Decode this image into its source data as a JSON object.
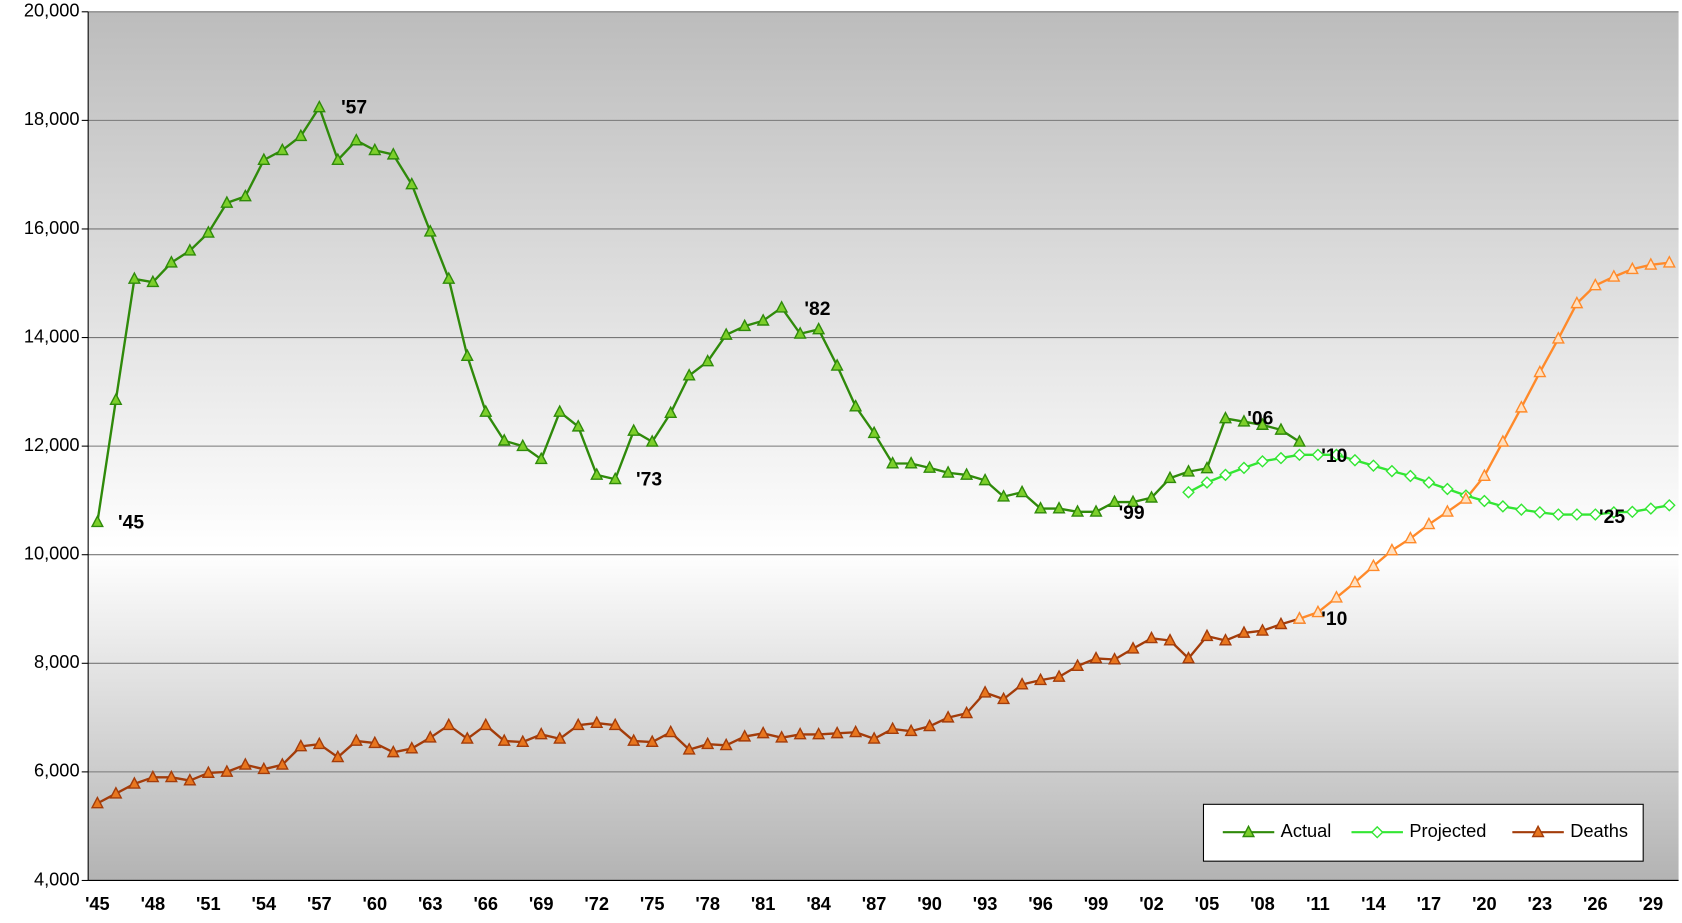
{
  "chart_data": {
    "type": "line",
    "categories": [
      "'45",
      null,
      null,
      "'48",
      null,
      null,
      "'51",
      null,
      null,
      "'54",
      null,
      null,
      "'57",
      null,
      null,
      "'60",
      null,
      null,
      "'63",
      null,
      null,
      "'66",
      null,
      null,
      "'69",
      null,
      null,
      "'72",
      null,
      null,
      "'75",
      null,
      null,
      "'78",
      null,
      null,
      "'81",
      null,
      null,
      "'84",
      null,
      null,
      "'87",
      null,
      null,
      "'90",
      null,
      null,
      "'93",
      null,
      null,
      "'96",
      null,
      null,
      "'99",
      null,
      null,
      "'02",
      null,
      null,
      "'05",
      null,
      null,
      "'08",
      null,
      null,
      "'11",
      null,
      null,
      "'14",
      null,
      null,
      "'17",
      null,
      null,
      "'20",
      null,
      null,
      "'23",
      null,
      null,
      "'26",
      null,
      null,
      "'29",
      null
    ],
    "ylim": [
      4000,
      20000
    ],
    "yticks": [
      {
        "value": 4000,
        "label": "4,000"
      },
      {
        "value": 6000,
        "label": "6,000"
      },
      {
        "value": 8000,
        "label": "8,000"
      },
      {
        "value": 10000,
        "label": "10,000"
      },
      {
        "value": 12000,
        "label": "12,000"
      },
      {
        "value": 14000,
        "label": "14,000"
      },
      {
        "value": 16000,
        "label": "16,000"
      },
      {
        "value": 18000,
        "label": "18,000"
      },
      {
        "value": 20000,
        "label": "20,000"
      }
    ],
    "grid": true,
    "legend": "lower right",
    "series": [
      {
        "name": "Actual",
        "color": "#2f8a0a",
        "marker": "triangle",
        "marker_fill": "#7ccf2a",
        "values": [
          10600,
          12850,
          15080,
          15020,
          15380,
          15600,
          15930,
          16480,
          16600,
          17270,
          17450,
          17710,
          18240,
          17270,
          17630,
          17450,
          17370,
          16820,
          15950,
          15080,
          13660,
          12630,
          12100,
          12000,
          11760,
          12630,
          12360,
          11470,
          11390,
          12280,
          12080,
          12610,
          13300,
          13560,
          14050,
          14210,
          14310,
          14550,
          14070,
          14150,
          13480,
          12730,
          12240,
          11680,
          11680,
          11600,
          11510,
          11470,
          11370,
          11070,
          11150,
          10850,
          10850,
          10790,
          10790,
          10970,
          10970,
          11050,
          11410,
          11530,
          11590,
          12510,
          12450,
          12390,
          12300,
          12080,
          null,
          null,
          null,
          null,
          null,
          null,
          null,
          null,
          null,
          null,
          null,
          null,
          null,
          null,
          null,
          null,
          null,
          null,
          null,
          null
        ]
      },
      {
        "name": "Projected",
        "color": "#33e633",
        "marker": "diamond",
        "marker_fill": "#ffffff",
        "values": [
          null,
          null,
          null,
          null,
          null,
          null,
          null,
          null,
          null,
          null,
          null,
          null,
          null,
          null,
          null,
          null,
          null,
          null,
          null,
          null,
          null,
          null,
          null,
          null,
          null,
          null,
          null,
          null,
          null,
          null,
          null,
          null,
          null,
          null,
          null,
          null,
          null,
          null,
          null,
          null,
          null,
          null,
          null,
          null,
          null,
          null,
          null,
          null,
          null,
          null,
          null,
          null,
          null,
          null,
          null,
          null,
          null,
          null,
          null,
          11150,
          11330,
          11470,
          11600,
          11720,
          11780,
          11840,
          11840,
          11840,
          11740,
          11640,
          11540,
          11450,
          11330,
          11210,
          11090,
          10990,
          10890,
          10830,
          10780,
          10740,
          10740,
          10740,
          10780,
          10790,
          10850,
          10910
        ]
      },
      {
        "name": "Deaths",
        "color": "#a33c0a",
        "marker": "triangle",
        "marker_fill": "#e8761e",
        "values": [
          5420,
          5600,
          5780,
          5900,
          5900,
          5840,
          5980,
          6000,
          6130,
          6050,
          6130,
          6470,
          6510,
          6270,
          6570,
          6530,
          6360,
          6430,
          6630,
          6860,
          6610,
          6860,
          6570,
          6550,
          6690,
          6610,
          6860,
          6900,
          6860,
          6570,
          6550,
          6730,
          6410,
          6510,
          6490,
          6650,
          6710,
          6630,
          6690,
          6690,
          6710,
          6730,
          6610,
          6790,
          6750,
          6840,
          7000,
          7080,
          7460,
          7340,
          7610,
          7690,
          7750,
          7950,
          8090,
          8070,
          8270,
          8460,
          8420,
          8090,
          8500,
          8420,
          8560,
          8600,
          8720,
          8820,
          null,
          null,
          null,
          null,
          null,
          null,
          null,
          null,
          null,
          null,
          null,
          null,
          null,
          null,
          null,
          null,
          null,
          null,
          null,
          null
        ]
      },
      {
        "color": "#ff8a2a",
        "marker": "triangle",
        "marker_fill": "#ffe0c0",
        "values": [
          null,
          null,
          null,
          null,
          null,
          null,
          null,
          null,
          null,
          null,
          null,
          null,
          null,
          null,
          null,
          null,
          null,
          null,
          null,
          null,
          null,
          null,
          null,
          null,
          null,
          null,
          null,
          null,
          null,
          null,
          null,
          null,
          null,
          null,
          null,
          null,
          null,
          null,
          null,
          null,
          null,
          null,
          null,
          null,
          null,
          null,
          null,
          null,
          null,
          null,
          null,
          null,
          null,
          null,
          null,
          null,
          null,
          null,
          null,
          null,
          null,
          null,
          null,
          null,
          null,
          8820,
          8940,
          9210,
          9490,
          9790,
          10080,
          10300,
          10560,
          10790,
          11030,
          11450,
          12080,
          12710,
          13360,
          13980,
          14630,
          14960,
          15120,
          15260,
          15340,
          15380
        ]
      }
    ],
    "annotations": [
      "'45",
      "'57",
      "'73",
      "'82",
      "'99",
      "'06",
      "'10",
      "'10",
      "'25"
    ]
  }
}
